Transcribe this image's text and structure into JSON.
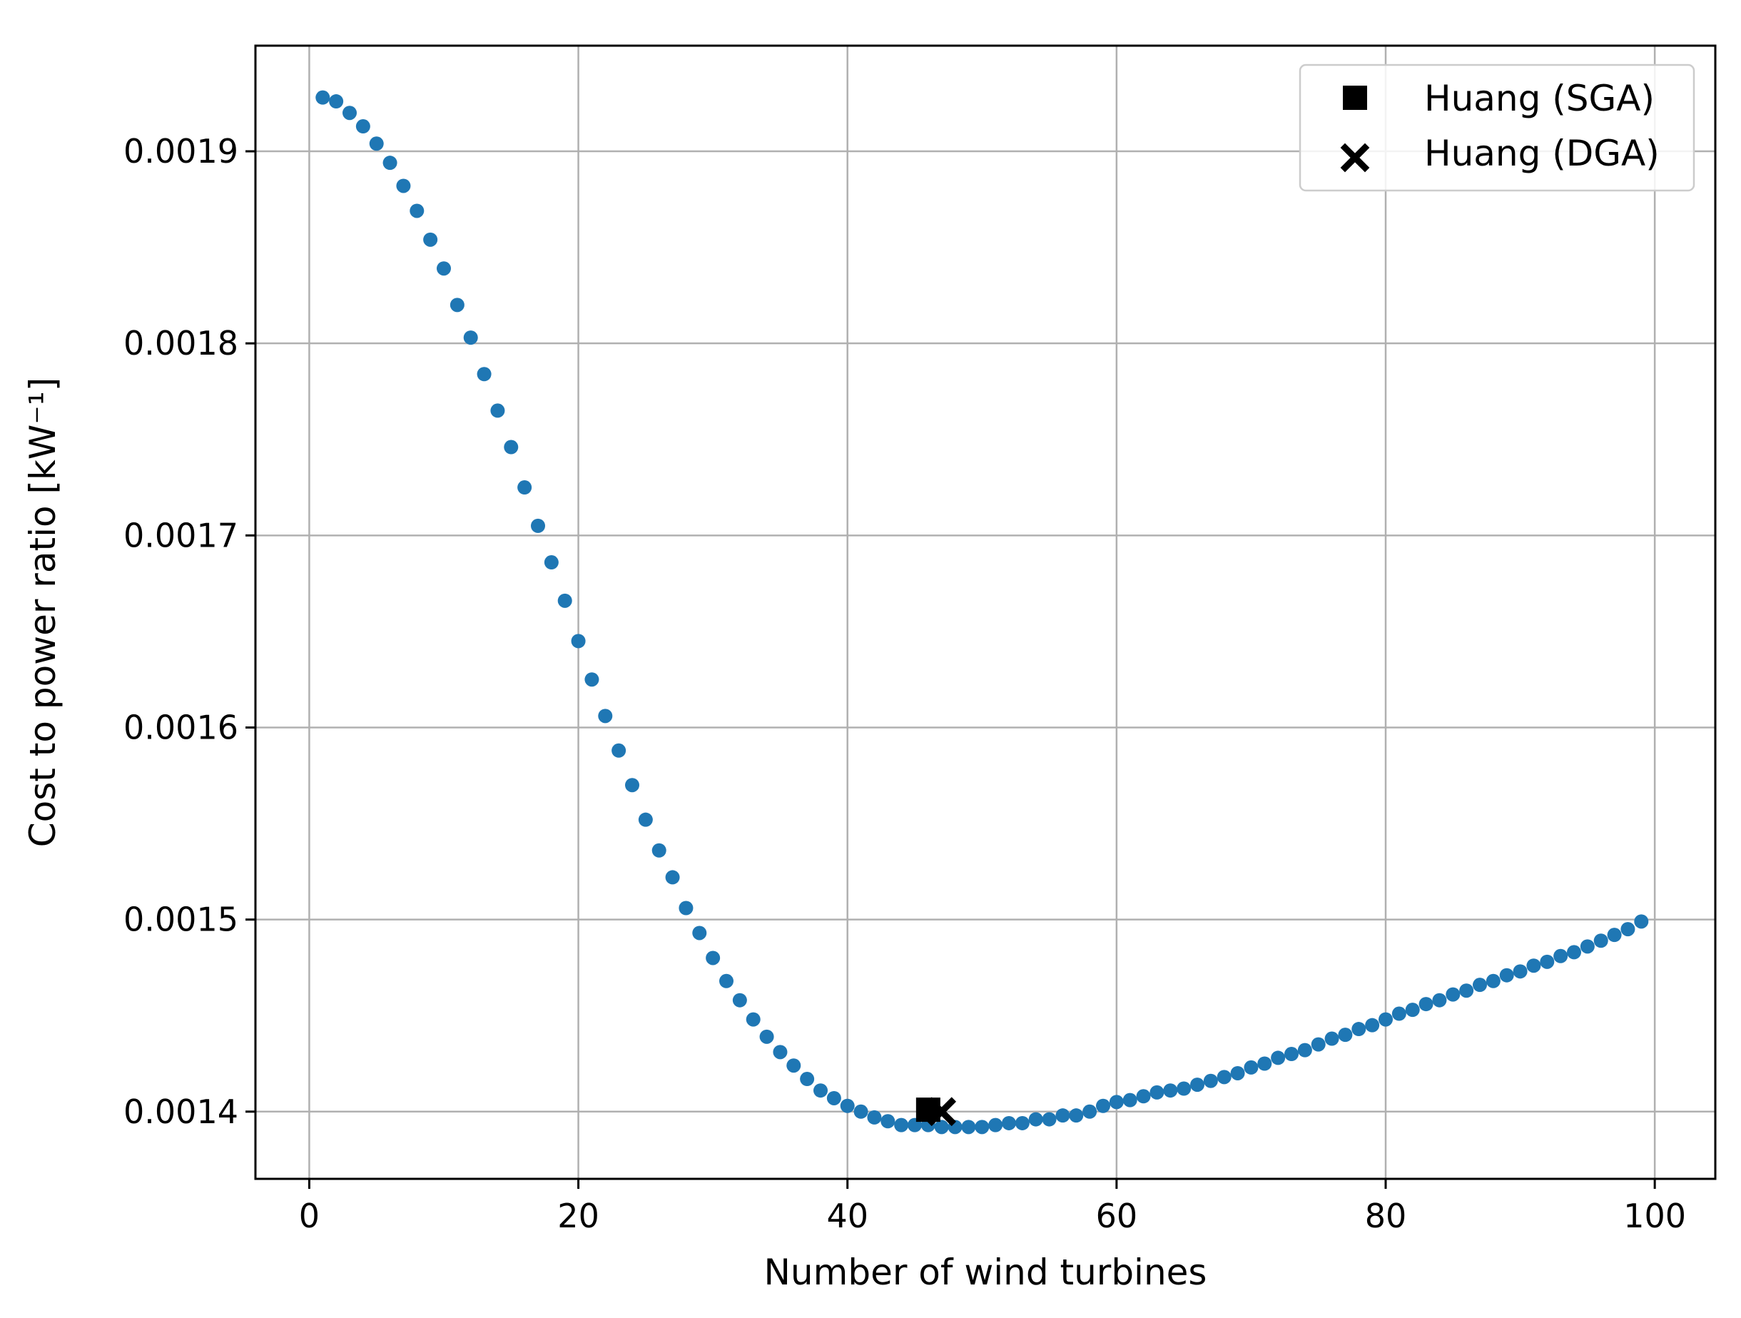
{
  "chart_data": {
    "type": "scatter",
    "xlabel": "Number of wind turbines",
    "ylabel": "Cost to power ratio [kW⁻¹]",
    "xlim": [
      -4,
      104.5
    ],
    "ylim": [
      0.001365,
      0.001955
    ],
    "xticks": [
      0,
      20,
      40,
      60,
      80,
      100
    ],
    "xtick_labels": [
      "0",
      "20",
      "40",
      "60",
      "80",
      "100"
    ],
    "yticks": [
      0.0014,
      0.0015,
      0.0016,
      0.0017,
      0.0018,
      0.0019
    ],
    "ytick_labels": [
      "0.0014",
      "0.0015",
      "0.0016",
      "0.0017",
      "0.0018",
      "0.0019"
    ],
    "grid": true,
    "legend_position": "top-right",
    "series_color": "#1f77b4",
    "series": [
      {
        "x": [
          1,
          2,
          3,
          4,
          5,
          6,
          7,
          8,
          9,
          10,
          11,
          12,
          13,
          14,
          15,
          16,
          17,
          18,
          19,
          20,
          21,
          22,
          23,
          24,
          25,
          26,
          27,
          28,
          29,
          30,
          31,
          32,
          33,
          34,
          35,
          36,
          37,
          38,
          39,
          40,
          41,
          42,
          43,
          44,
          45,
          46,
          47,
          48,
          49,
          50,
          51,
          52,
          53,
          54,
          55,
          56,
          57,
          58,
          59,
          60,
          61,
          62,
          63,
          64,
          65,
          66,
          67,
          68,
          69,
          70,
          71,
          72,
          73,
          74,
          75,
          76,
          77,
          78,
          79,
          80,
          81,
          82,
          83,
          84,
          85,
          86,
          87,
          88,
          89,
          90,
          91,
          92,
          93,
          94,
          95,
          96,
          97,
          98,
          99
        ],
        "y": [
          0.001928,
          0.001926,
          0.00192,
          0.001913,
          0.001904,
          0.001894,
          0.001882,
          0.001869,
          0.001854,
          0.001839,
          0.00182,
          0.001803,
          0.001784,
          0.001765,
          0.001746,
          0.001725,
          0.001705,
          0.001686,
          0.001666,
          0.001645,
          0.001625,
          0.001606,
          0.001588,
          0.00157,
          0.001552,
          0.001536,
          0.001522,
          0.001506,
          0.001493,
          0.00148,
          0.001468,
          0.001458,
          0.001448,
          0.001439,
          0.001431,
          0.001424,
          0.001417,
          0.001411,
          0.001407,
          0.001403,
          0.0014,
          0.001397,
          0.001395,
          0.001393,
          0.001393,
          0.001393,
          0.001392,
          0.001392,
          0.001392,
          0.001392,
          0.001393,
          0.001394,
          0.001394,
          0.001396,
          0.001396,
          0.001398,
          0.001398,
          0.0014,
          0.001403,
          0.001405,
          0.001406,
          0.001408,
          0.00141,
          0.001411,
          0.001412,
          0.001414,
          0.001416,
          0.001418,
          0.00142,
          0.001423,
          0.001425,
          0.001428,
          0.00143,
          0.001432,
          0.001435,
          0.001438,
          0.00144,
          0.001443,
          0.001445,
          0.001448,
          0.001451,
          0.001453,
          0.001456,
          0.001458,
          0.001461,
          0.001463,
          0.001466,
          0.001468,
          0.001471,
          0.001473,
          0.001476,
          0.001478,
          0.001481,
          0.001483,
          0.001486,
          0.001489,
          0.001492,
          0.001495,
          0.001499
        ]
      }
    ],
    "markers": [
      {
        "name": "Huang (SGA)",
        "shape": "square",
        "x": 46,
        "y": 0.001401,
        "color": "#000000"
      },
      {
        "name": "Huang (DGA)",
        "shape": "x",
        "x": 47,
        "y": 0.0014,
        "color": "#000000"
      }
    ]
  }
}
